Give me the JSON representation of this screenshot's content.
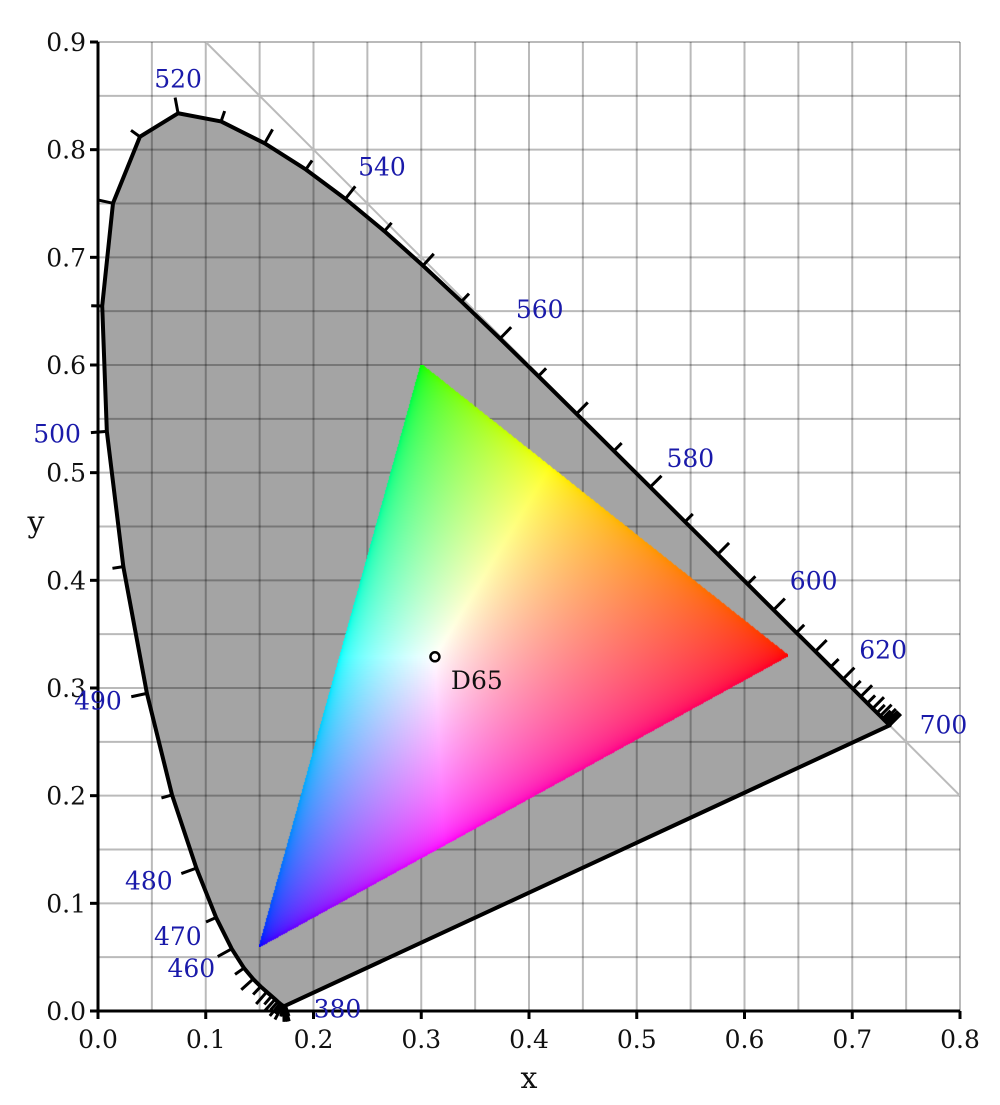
{
  "chart_data": {
    "type": "line",
    "xlabel": "x",
    "ylabel": "y",
    "xlim": [
      0,
      0.8
    ],
    "ylim": [
      0,
      0.9
    ],
    "x_ticks": [
      "0.0",
      "0.1",
      "0.2",
      "0.3",
      "0.4",
      "0.5",
      "0.6",
      "0.7",
      "0.8"
    ],
    "y_ticks": [
      "0.0",
      "0.1",
      "0.2",
      "0.3",
      "0.4",
      "0.5",
      "0.6",
      "0.7",
      "0.8",
      "0.9"
    ],
    "grid": true,
    "grid_step": 0.05,
    "colors": {
      "locus_fill": "#a4a4a4",
      "locus_stroke": "#000000",
      "wavelength_label": "#1a1aaa",
      "diagonal": "#bbbbbb"
    },
    "spectral_locus": {
      "wavelength_nm": [
        380,
        385,
        390,
        395,
        400,
        405,
        410,
        415,
        420,
        425,
        430,
        435,
        440,
        445,
        450,
        455,
        460,
        465,
        470,
        475,
        480,
        485,
        490,
        495,
        500,
        505,
        510,
        515,
        520,
        525,
        530,
        535,
        540,
        545,
        550,
        555,
        560,
        565,
        570,
        575,
        580,
        585,
        590,
        595,
        600,
        605,
        610,
        615,
        620,
        625,
        630,
        635,
        640,
        645,
        650,
        655,
        660,
        665,
        670,
        675,
        680,
        685,
        690,
        695,
        700
      ],
      "x": [
        0.1741,
        0.174,
        0.1738,
        0.1736,
        0.1733,
        0.173,
        0.1726,
        0.1721,
        0.1714,
        0.1703,
        0.1689,
        0.1669,
        0.1644,
        0.1611,
        0.1566,
        0.151,
        0.144,
        0.1355,
        0.1241,
        0.1096,
        0.0913,
        0.0687,
        0.0454,
        0.0235,
        0.0082,
        0.0039,
        0.0139,
        0.0389,
        0.0743,
        0.1142,
        0.1547,
        0.1929,
        0.2296,
        0.2658,
        0.3016,
        0.3373,
        0.3731,
        0.4087,
        0.4441,
        0.4788,
        0.5125,
        0.5448,
        0.5752,
        0.6029,
        0.627,
        0.6482,
        0.6658,
        0.6801,
        0.6915,
        0.7006,
        0.7079,
        0.714,
        0.719,
        0.723,
        0.726,
        0.7283,
        0.73,
        0.7311,
        0.732,
        0.7327,
        0.7334,
        0.734,
        0.7344,
        0.7346,
        0.7347
      ],
      "y": [
        0.005,
        0.005,
        0.0049,
        0.0049,
        0.0048,
        0.0048,
        0.0048,
        0.0048,
        0.0051,
        0.0058,
        0.0069,
        0.0086,
        0.0109,
        0.0138,
        0.0177,
        0.0227,
        0.0297,
        0.0399,
        0.0578,
        0.0868,
        0.1327,
        0.2007,
        0.295,
        0.4127,
        0.5384,
        0.6548,
        0.7502,
        0.812,
        0.8338,
        0.8262,
        0.8059,
        0.7816,
        0.7543,
        0.7243,
        0.6923,
        0.6589,
        0.6245,
        0.5896,
        0.5547,
        0.5202,
        0.4866,
        0.4544,
        0.4242,
        0.3965,
        0.3725,
        0.3514,
        0.334,
        0.3197,
        0.3083,
        0.2993,
        0.292,
        0.2859,
        0.2809,
        0.277,
        0.274,
        0.2717,
        0.27,
        0.2689,
        0.268,
        0.2673,
        0.2666,
        0.266,
        0.2656,
        0.2654,
        0.2653
      ]
    },
    "wavelength_labels": [
      "380",
      "460",
      "470",
      "480",
      "490",
      "500",
      "520",
      "540",
      "560",
      "580",
      "600",
      "620",
      "700"
    ],
    "diagonal_line": {
      "equation": "x + y = 1",
      "from": [
        0.1,
        0.9
      ],
      "to": [
        0.8,
        0.2
      ]
    },
    "gamut_triangle": {
      "red": [
        0.64,
        0.33
      ],
      "green": [
        0.3,
        0.6
      ],
      "blue": [
        0.15,
        0.06
      ]
    },
    "white_point": {
      "label": "D65",
      "x": 0.3127,
      "y": 0.329
    }
  }
}
